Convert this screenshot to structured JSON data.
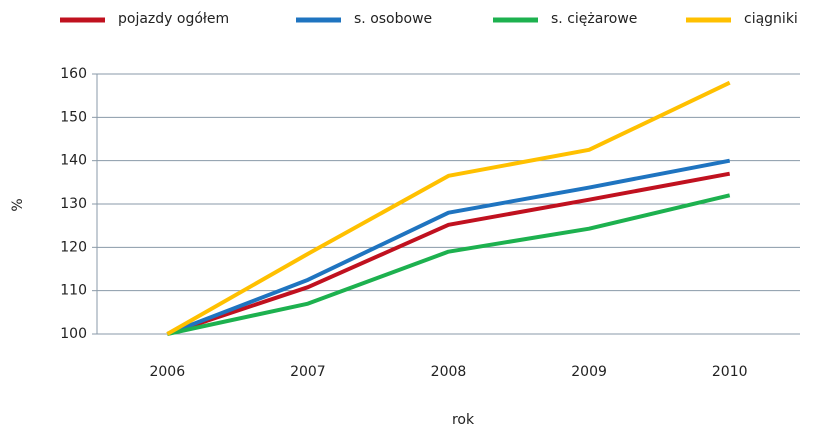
{
  "chart_data": {
    "type": "line",
    "categories": [
      "2006",
      "2007",
      "2008",
      "2009",
      "2010"
    ],
    "series": [
      {
        "name": "pojazdy ogółem",
        "color": "#c0111f",
        "values": [
          100,
          110.8,
          125.2,
          131,
          137
        ]
      },
      {
        "name": "s. osobowe",
        "color": "#1f74c0",
        "values": [
          100,
          112.5,
          128,
          133.8,
          140
        ]
      },
      {
        "name": "s. ciężarowe",
        "color": "#1db14f",
        "values": [
          100,
          107,
          119,
          124.3,
          132
        ]
      },
      {
        "name": "ciągniki",
        "color": "#ffc000",
        "values": [
          100,
          118.5,
          136.5,
          142.5,
          158
        ]
      }
    ],
    "xlabel": "rok",
    "ylabel": "%",
    "ylim": [
      100,
      160
    ],
    "yticks": [
      100,
      110,
      120,
      130,
      140,
      150,
      160
    ],
    "grid": true
  }
}
